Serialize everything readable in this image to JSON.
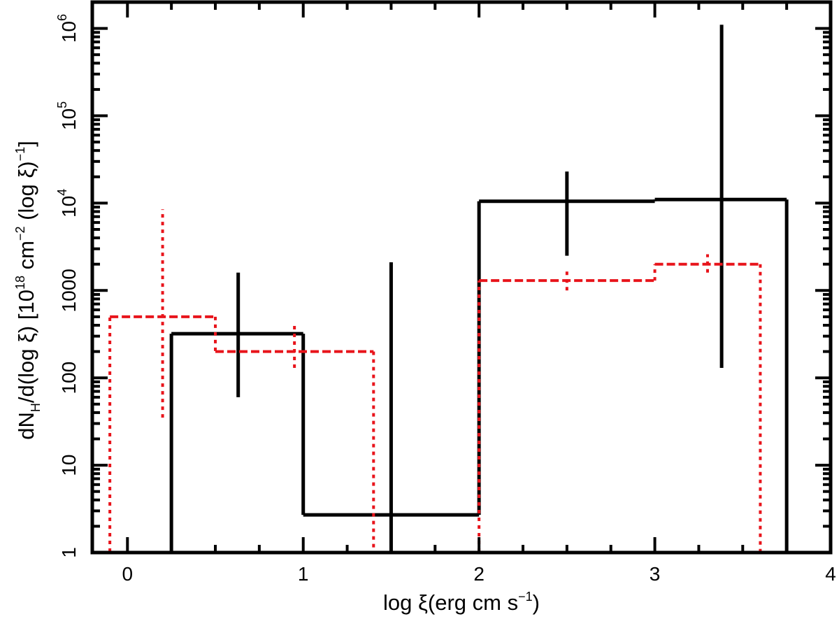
{
  "chart_data": {
    "type": "line",
    "xlabel": {
      "pre": "log ξ(erg cm s",
      "sup": "−1",
      "post": ")"
    },
    "ylabel": {
      "p1": "dN",
      "sub1": "H",
      "p2": "/d(log ξ) [10",
      "sup1": "18",
      "p3": " cm",
      "sup2": "−2",
      "p4": " (log ξ)",
      "sup3": "−1",
      "p5": "]"
    },
    "xlim": [
      -0.2,
      4.0
    ],
    "ylim": [
      1,
      2000000
    ],
    "yscale": "log",
    "x_ticks": [
      {
        "value": 0,
        "label": "0"
      },
      {
        "value": 1,
        "label": "1"
      },
      {
        "value": 2,
        "label": "2"
      },
      {
        "value": 3,
        "label": "3"
      },
      {
        "value": 4,
        "label": "4"
      }
    ],
    "x_minor_step": 0.25,
    "y_ticks": [
      {
        "value": 1,
        "label": "1"
      },
      {
        "value": 10,
        "label": "10"
      },
      {
        "value": 100,
        "label": "100"
      },
      {
        "value": 1000,
        "label": "1000"
      },
      {
        "value": 10000,
        "label": "10",
        "sup": "4"
      },
      {
        "value": 100000,
        "label": "10",
        "sup": "5"
      },
      {
        "value": 1000000,
        "label": "10",
        "sup": "6"
      }
    ],
    "grid": false,
    "series": [
      {
        "color": "#000000",
        "style": "solid",
        "bins": [
          {
            "x0": 0.25,
            "x1": 1.0,
            "y": 320,
            "xc": 0.63,
            "err_lo": 60,
            "err_hi": 1600
          },
          {
            "x0": 1.0,
            "x1": 2.0,
            "y": 2.7,
            "xc": 1.5,
            "err_lo": 1,
            "err_hi": 2100
          },
          {
            "x0": 2.0,
            "x1": 3.0,
            "y": 10500,
            "xc": 2.5,
            "err_lo": 2500,
            "err_hi": 23000
          },
          {
            "x0": 3.0,
            "x1": 3.75,
            "y": 11000,
            "xc": 3.38,
            "err_lo": 130,
            "err_hi": 1100000
          }
        ]
      },
      {
        "color": "#e8141b",
        "style": "dashed",
        "bins": [
          {
            "x0": -0.1,
            "x1": 0.5,
            "y": 500,
            "xc": 0.2,
            "err_lo": 35,
            "err_hi": 8500
          },
          {
            "x0": 0.5,
            "x1": 1.4,
            "y": 200,
            "xc": 0.95,
            "err_lo": 130,
            "err_hi": 400
          },
          {
            "x0": 2.0,
            "x1": 3.0,
            "y": 1300,
            "xc": 2.5,
            "err_lo": 1000,
            "err_hi": 1650
          },
          {
            "x0": 3.0,
            "x1": 3.6,
            "y": 2000,
            "xc": 3.3,
            "err_lo": 1600,
            "err_hi": 2600
          }
        ]
      }
    ]
  }
}
